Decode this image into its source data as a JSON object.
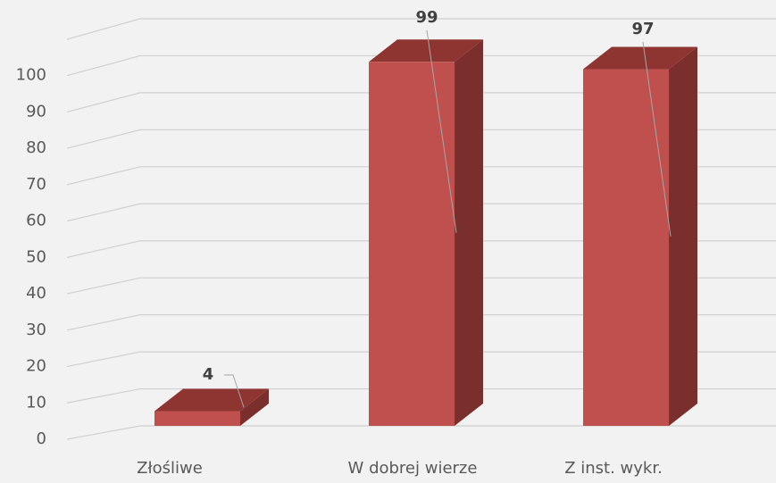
{
  "chart_data": {
    "type": "bar3d",
    "categories": [
      "Złośliwe",
      "W dobrej wierze",
      "Z inst. wykr."
    ],
    "values": [
      4,
      99,
      97
    ],
    "color": "#c0504d",
    "side_color": "#7b2f2d",
    "top_color": "#8e3532",
    "ylim": [
      0,
      110
    ],
    "yticks": [
      0,
      10,
      20,
      30,
      40,
      50,
      60,
      70,
      80,
      90,
      100
    ],
    "grid": true
  }
}
